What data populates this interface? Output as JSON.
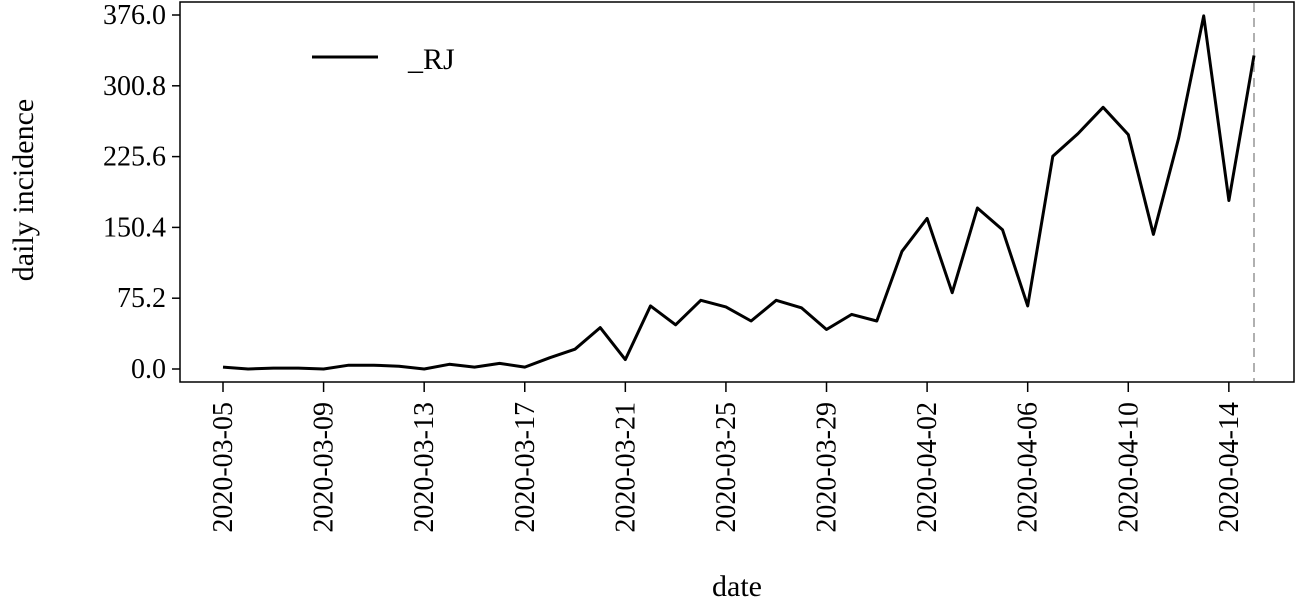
{
  "chart_data": {
    "type": "line",
    "title": "",
    "xlabel": "date",
    "ylabel": "daily incidence",
    "x_ticks": [
      "2020-03-05",
      "2020-03-09",
      "2020-03-13",
      "2020-03-17",
      "2020-03-21",
      "2020-03-25",
      "2020-03-29",
      "2020-04-02",
      "2020-04-06",
      "2020-04-10",
      "2020-04-14"
    ],
    "y_ticks": [
      "0.0",
      "75.2",
      "150.4",
      "225.6",
      "300.8",
      "376.0"
    ],
    "ylim": [
      0,
      376
    ],
    "xlim": [
      "2020-03-05",
      "2020-04-15"
    ],
    "grid": false,
    "legend_position": "top-left",
    "vertical_marker": "2020-04-15",
    "series": [
      {
        "name": "_RJ",
        "color": "#000000",
        "points": [
          [
            "2020-03-05",
            2
          ],
          [
            "2020-03-06",
            0
          ],
          [
            "2020-03-07",
            1
          ],
          [
            "2020-03-08",
            1
          ],
          [
            "2020-03-09",
            0
          ],
          [
            "2020-03-10",
            4
          ],
          [
            "2020-03-11",
            4
          ],
          [
            "2020-03-12",
            3
          ],
          [
            "2020-03-13",
            0
          ],
          [
            "2020-03-14",
            5
          ],
          [
            "2020-03-15",
            2
          ],
          [
            "2020-03-16",
            6
          ],
          [
            "2020-03-17",
            2
          ],
          [
            "2020-03-18",
            12
          ],
          [
            "2020-03-19",
            21
          ],
          [
            "2020-03-20",
            44
          ],
          [
            "2020-03-21",
            10
          ],
          [
            "2020-03-22",
            67
          ],
          [
            "2020-03-23",
            47
          ],
          [
            "2020-03-24",
            73
          ],
          [
            "2020-03-25",
            66
          ],
          [
            "2020-03-26",
            51
          ],
          [
            "2020-03-27",
            73
          ],
          [
            "2020-03-28",
            65
          ],
          [
            "2020-03-29",
            42
          ],
          [
            "2020-03-30",
            58
          ],
          [
            "2020-03-31",
            51
          ],
          [
            "2020-04-01",
            125
          ],
          [
            "2020-04-02",
            160
          ],
          [
            "2020-04-03",
            81
          ],
          [
            "2020-04-04",
            171
          ],
          [
            "2020-04-05",
            148
          ],
          [
            "2020-04-06",
            67
          ],
          [
            "2020-04-07",
            226
          ],
          [
            "2020-04-08",
            250
          ],
          [
            "2020-04-09",
            278
          ],
          [
            "2020-04-10",
            249
          ],
          [
            "2020-04-11",
            143
          ],
          [
            "2020-04-12",
            245
          ],
          [
            "2020-04-13",
            375
          ],
          [
            "2020-04-14",
            179
          ],
          [
            "2020-04-15",
            333
          ]
        ]
      }
    ]
  }
}
